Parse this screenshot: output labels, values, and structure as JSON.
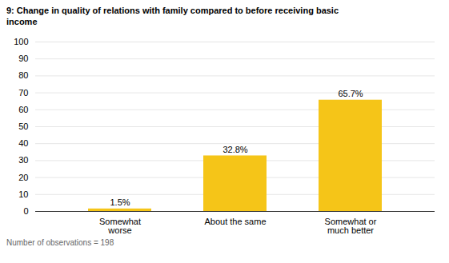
{
  "chart_data": {
    "type": "bar",
    "title": "9: Change in quality of relations with family compared to before receiving basic\nincome",
    "categories": [
      "Somewhat\nworse",
      "About the same",
      "Somewhat or\nmuch better"
    ],
    "values": [
      1.5,
      32.8,
      65.7
    ],
    "value_labels": [
      "1.5%",
      "32.8%",
      "65.7%"
    ],
    "data_labels": true,
    "color": "#F5C518",
    "ylim": [
      0,
      100
    ],
    "yticks": [
      0,
      10,
      20,
      30,
      40,
      50,
      60,
      70,
      80,
      90,
      100
    ],
    "grid": true,
    "caption": "Number of observations = 198"
  }
}
